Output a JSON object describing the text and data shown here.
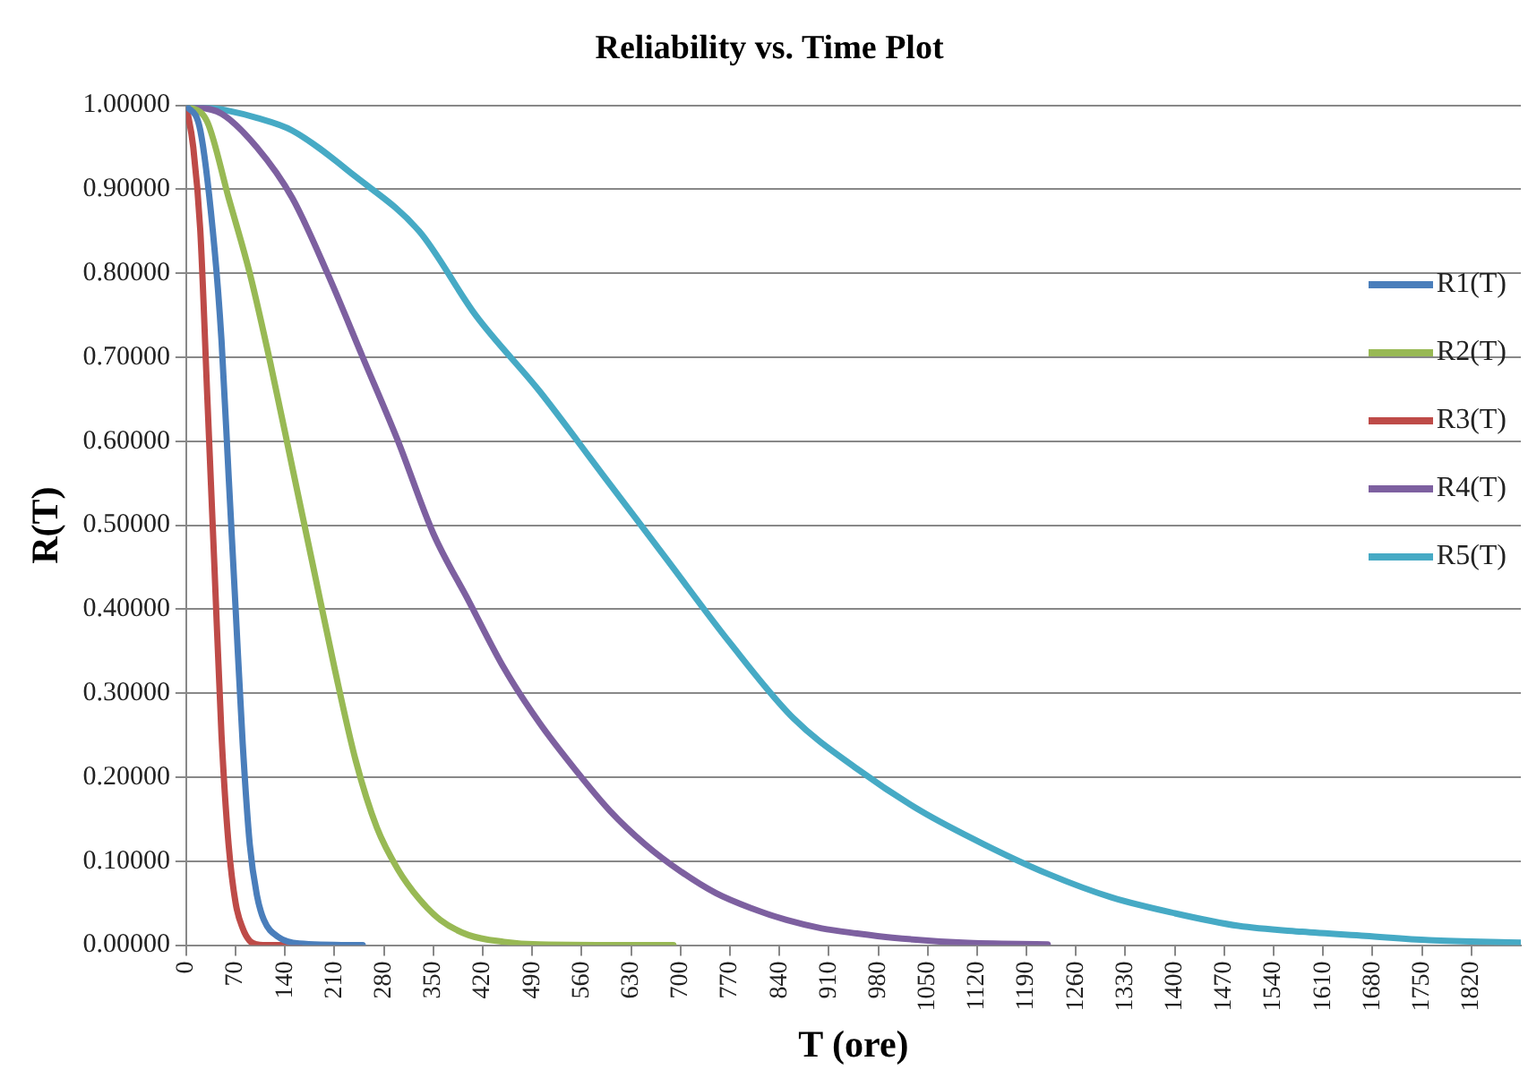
{
  "chart_data": {
    "type": "line",
    "title": "Reliability vs. Time Plot",
    "xlabel": "T (ore)",
    "ylabel": "R(T)",
    "xlim": [
      0,
      1890
    ],
    "xticks": [
      0,
      70,
      140,
      210,
      280,
      350,
      420,
      490,
      560,
      630,
      700,
      770,
      840,
      910,
      980,
      1050,
      1120,
      1190,
      1260,
      1330,
      1400,
      1470,
      1540,
      1610,
      1680,
      1750,
      1820
    ],
    "ylim": [
      0,
      1
    ],
    "yticks": [
      {
        "value": 0,
        "label": "0.00000"
      },
      {
        "value": 0.1,
        "label": "0.10000"
      },
      {
        "value": 0.2,
        "label": "0.20000"
      },
      {
        "value": 0.3,
        "label": "0.30000"
      },
      {
        "value": 0.4,
        "label": "0.40000"
      },
      {
        "value": 0.5,
        "label": "0.50000"
      },
      {
        "value": 0.6,
        "label": "0.60000"
      },
      {
        "value": 0.7,
        "label": "0.70000"
      },
      {
        "value": 0.8,
        "label": "0.80000"
      },
      {
        "value": 0.9,
        "label": "0.90000"
      },
      {
        "value": 1,
        "label": "1.00000"
      }
    ],
    "grid": "y",
    "legend": "right",
    "marker": "none",
    "line_style": "solid",
    "series": [
      {
        "name": "R1(T)",
        "color": "#4a7ebb",
        "x": [
          0,
          20,
          40,
          50,
          60,
          70,
          80,
          90,
          100,
          110,
          130,
          160,
          250
        ],
        "values": [
          1,
          0.97,
          0.83,
          0.72,
          0.56,
          0.4,
          0.24,
          0.12,
          0.06,
          0.03,
          0.01,
          0.002,
          0
        ]
      },
      {
        "name": "R2(T)",
        "color": "#98b954",
        "x": [
          0,
          30,
          60,
          90,
          120,
          150,
          180,
          210,
          240,
          270,
          300,
          330,
          360,
          400,
          450,
          500,
          690
        ],
        "values": [
          1,
          0.98,
          0.89,
          0.8,
          0.69,
          0.57,
          0.45,
          0.33,
          0.22,
          0.14,
          0.09,
          0.055,
          0.03,
          0.012,
          0.004,
          0.001,
          0
        ]
      },
      {
        "name": "R3(T)",
        "color": "#be4b48",
        "x": [
          0,
          10,
          20,
          30,
          40,
          50,
          60,
          70,
          80,
          90,
          100,
          120,
          160
        ],
        "values": [
          1,
          0.95,
          0.85,
          0.65,
          0.45,
          0.25,
          0.12,
          0.05,
          0.02,
          0.005,
          0.001,
          0,
          0
        ]
      },
      {
        "name": "R4(T)",
        "color": "#7d60a0",
        "x": [
          0,
          50,
          100,
          150,
          200,
          250,
          300,
          350,
          400,
          450,
          500,
          550,
          600,
          650,
          700,
          750,
          800,
          850,
          900,
          950,
          1000,
          1100,
          1220
        ],
        "values": [
          1,
          0.99,
          0.95,
          0.89,
          0.8,
          0.7,
          0.6,
          0.49,
          0.41,
          0.33,
          0.265,
          0.21,
          0.16,
          0.12,
          0.088,
          0.062,
          0.044,
          0.03,
          0.02,
          0.014,
          0.009,
          0.003,
          0.001
        ]
      },
      {
        "name": "R5(T)",
        "color": "#46aac5",
        "x": [
          0,
          50,
          100,
          150,
          240,
          330,
          410,
          500,
          590,
          680,
          770,
          860,
          950,
          1040,
          1130,
          1220,
          1310,
          1400,
          1490,
          1580,
          1670,
          1760,
          1890
        ],
        "values": [
          1,
          0.995,
          0.985,
          0.97,
          0.915,
          0.85,
          0.75,
          0.66,
          0.56,
          0.46,
          0.36,
          0.27,
          0.21,
          0.16,
          0.12,
          0.085,
          0.057,
          0.038,
          0.023,
          0.016,
          0.011,
          0.006,
          0.003
        ]
      }
    ]
  }
}
